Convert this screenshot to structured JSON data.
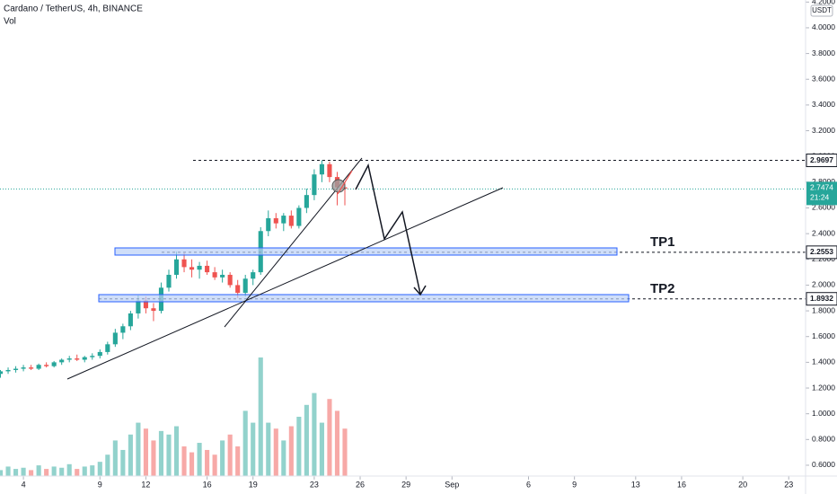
{
  "chart_data": {
    "type": "candlestick",
    "title": "Cardano / TetherUS, 4h, BINANCE",
    "volume_label": "Vol",
    "currency": "USDT",
    "x": [
      2.5,
      3,
      3.5,
      4,
      4.5,
      5,
      5.5,
      6,
      6.5,
      7,
      7.5,
      8,
      8.5,
      9,
      9.5,
      10,
      10.5,
      11,
      11.5,
      12,
      12.5,
      13,
      13.5,
      14,
      14.5,
      15,
      15.5,
      16,
      16.5,
      17,
      17.5,
      18,
      18.5,
      19,
      19.5,
      20,
      20.5,
      21,
      21.5,
      22,
      22.5,
      23,
      23.5,
      24,
      24.5,
      25
    ],
    "open": [
      1.31,
      1.33,
      1.34,
      1.35,
      1.36,
      1.35,
      1.38,
      1.37,
      1.4,
      1.42,
      1.43,
      1.42,
      1.44,
      1.45,
      1.48,
      1.54,
      1.63,
      1.68,
      1.78,
      1.88,
      1.82,
      1.8,
      1.98,
      2.08,
      2.2,
      2.14,
      2.12,
      2.15,
      2.1,
      2.06,
      2.08,
      2.0,
      1.94,
      2.05,
      2.1,
      2.42,
      2.52,
      2.48,
      2.54,
      2.46,
      2.6,
      2.7,
      2.86,
      2.94,
      2.84,
      2.76
    ],
    "high": [
      1.34,
      1.36,
      1.37,
      1.38,
      1.38,
      1.39,
      1.4,
      1.41,
      1.43,
      1.45,
      1.46,
      1.45,
      1.47,
      1.5,
      1.56,
      1.66,
      1.7,
      1.8,
      1.92,
      1.91,
      1.86,
      2.02,
      2.12,
      2.26,
      2.25,
      2.2,
      2.18,
      2.19,
      2.14,
      2.12,
      2.1,
      2.04,
      2.08,
      2.12,
      2.45,
      2.58,
      2.56,
      2.56,
      2.58,
      2.62,
      2.75,
      2.9,
      2.97,
      2.96,
      2.88,
      2.8
    ],
    "low": [
      1.28,
      1.31,
      1.32,
      1.33,
      1.34,
      1.34,
      1.36,
      1.36,
      1.38,
      1.4,
      1.41,
      1.4,
      1.42,
      1.43,
      1.46,
      1.52,
      1.58,
      1.65,
      1.74,
      1.78,
      1.72,
      1.78,
      1.95,
      2.05,
      2.1,
      2.06,
      2.05,
      2.08,
      2.04,
      2.02,
      1.98,
      1.9,
      1.91,
      2.0,
      2.08,
      2.38,
      2.44,
      2.42,
      2.44,
      2.44,
      2.56,
      2.66,
      2.8,
      2.8,
      2.62,
      2.62
    ],
    "close": [
      1.33,
      1.34,
      1.35,
      1.36,
      1.35,
      1.38,
      1.37,
      1.4,
      1.42,
      1.43,
      1.42,
      1.44,
      1.45,
      1.48,
      1.54,
      1.63,
      1.68,
      1.78,
      1.88,
      1.82,
      1.8,
      1.98,
      2.08,
      2.2,
      2.14,
      2.12,
      2.15,
      2.1,
      2.06,
      2.08,
      2.0,
      1.94,
      2.05,
      2.1,
      2.42,
      2.52,
      2.48,
      2.54,
      2.46,
      2.6,
      2.7,
      2.86,
      2.94,
      2.84,
      2.76,
      2.75
    ],
    "volume": [
      5,
      8,
      6,
      7,
      5,
      9,
      6,
      8,
      7,
      10,
      6,
      8,
      9,
      12,
      18,
      30,
      22,
      35,
      45,
      40,
      30,
      38,
      35,
      42,
      25,
      20,
      28,
      22,
      18,
      30,
      35,
      25,
      55,
      45,
      100,
      45,
      40,
      30,
      42,
      50,
      60,
      70,
      45,
      65,
      55,
      40
    ],
    "vlim": [
      0,
      100
    ],
    "up_color": "#26a69a",
    "down_color": "#ef5350",
    "volume_up_color": "#92d2cc",
    "volume_down_color": "#f7a9a7",
    "xlim": [
      2.47,
      55.1
    ],
    "xticks": [
      4,
      9,
      12,
      16,
      19,
      23,
      26,
      29,
      {
        "value": 32,
        "label": "Sep"
      },
      {
        "value": 37,
        "label": "6"
      },
      {
        "value": 40,
        "label": "9"
      },
      {
        "value": 44,
        "label": "13"
      },
      {
        "value": 47,
        "label": "16"
      },
      {
        "value": 51,
        "label": "20"
      },
      {
        "value": 54,
        "label": "23"
      }
    ],
    "ylim": [
      0.516,
      4.216
    ],
    "yticks": [
      {
        "value": 4.2,
        "label": "4.2000"
      },
      {
        "value": 4.0,
        "label": "4.0000"
      },
      {
        "value": 3.8,
        "label": "3.8000"
      },
      {
        "value": 3.6,
        "label": "3.6000"
      },
      {
        "value": 3.4,
        "label": "3.4000"
      },
      {
        "value": 3.2,
        "label": "3.2000"
      },
      {
        "value": 3.0,
        "label": "3.0000"
      },
      {
        "value": 2.8,
        "label": "2.8000"
      },
      {
        "value": 2.6,
        "label": "2.6000"
      },
      {
        "value": 2.4,
        "label": "2.4000"
      },
      {
        "value": 2.2,
        "label": "2.2000"
      },
      {
        "value": 2.0,
        "label": "2.0000"
      },
      {
        "value": 1.8,
        "label": "1.8000"
      },
      {
        "value": 1.6,
        "label": "1.6000"
      },
      {
        "value": 1.4,
        "label": "1.4000"
      },
      {
        "value": 1.2,
        "label": "1.2000"
      },
      {
        "value": 1.0,
        "label": "1.0000"
      },
      {
        "value": 0.8,
        "label": "0.8000"
      },
      {
        "value": 0.6,
        "label": "0.6000"
      }
    ],
    "levels": [
      2.9697,
      2.2553,
      1.8932
    ],
    "last_price": 2.7474,
    "countdown": "21:24",
    "annotations": [
      "TP1",
      "TP2"
    ]
  }
}
